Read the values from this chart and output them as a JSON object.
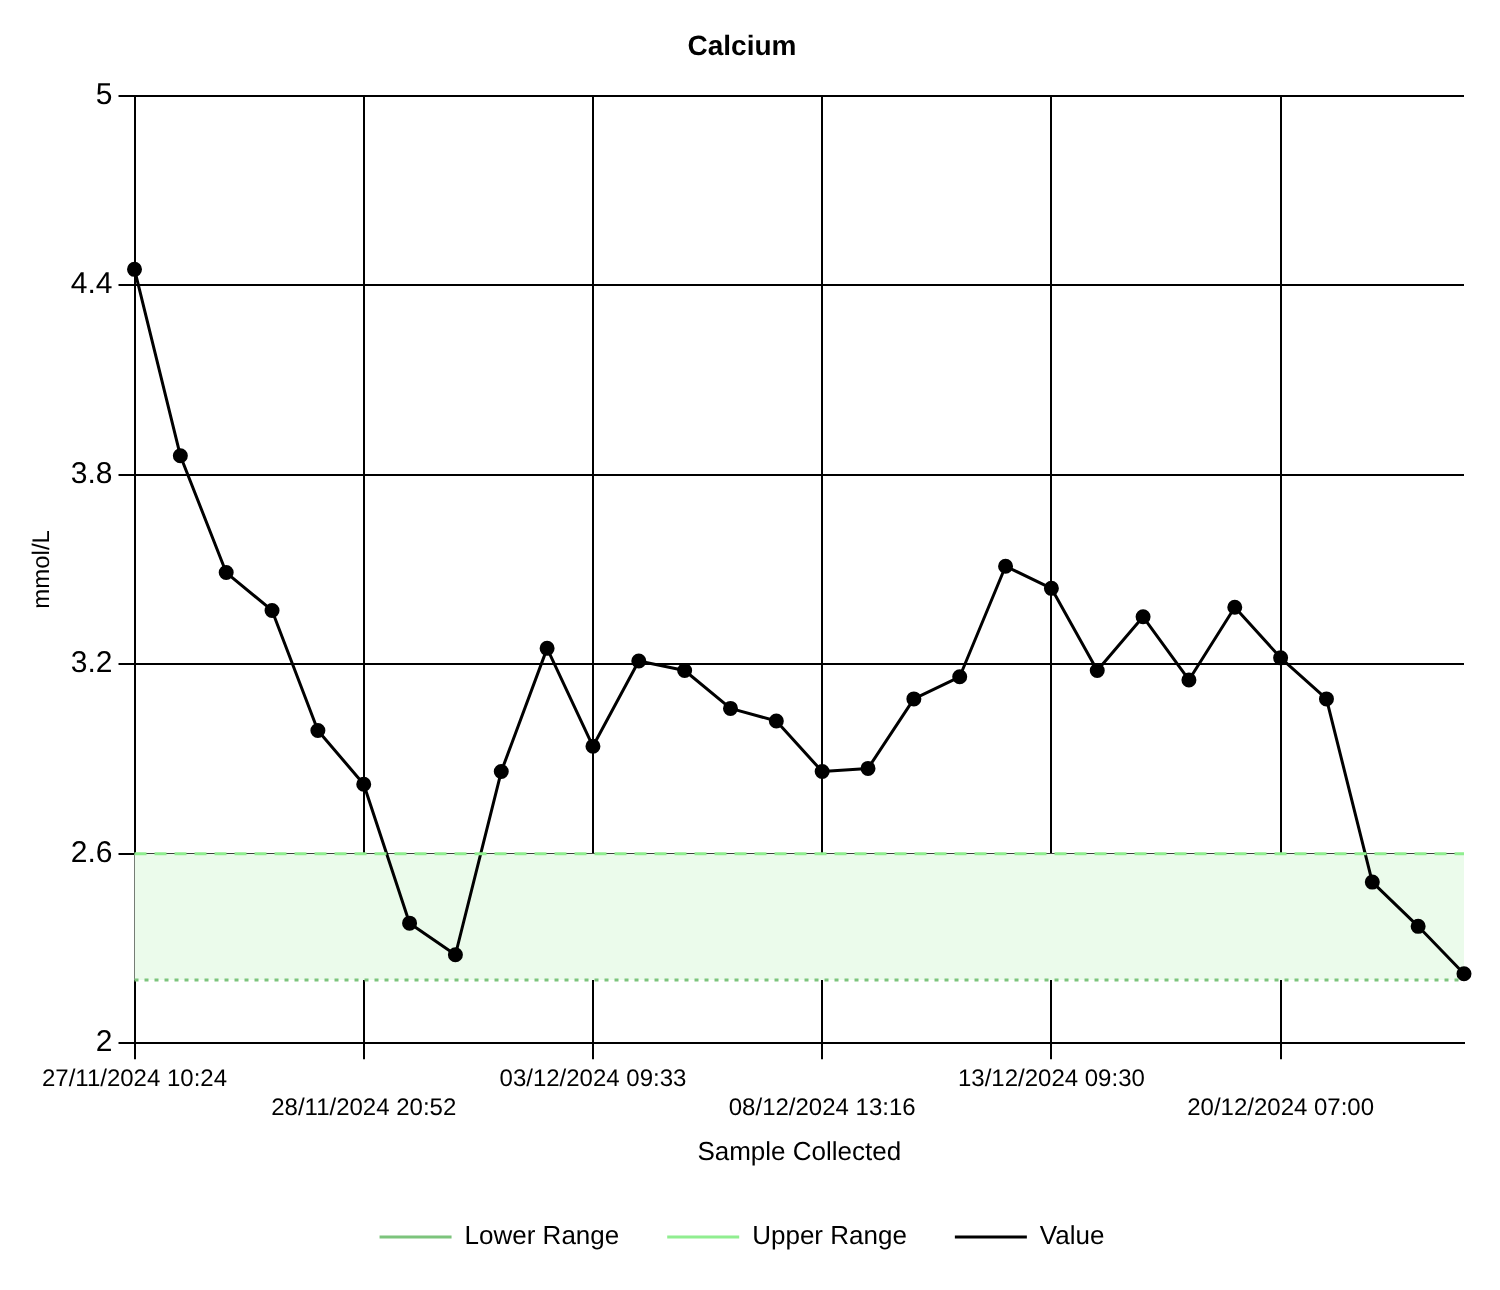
{
  "chart_data": {
    "type": "line",
    "title": "Calcium",
    "xlabel": "Sample Collected",
    "ylabel": "mmol/L",
    "categories": [
      "27/11/2024 10:24",
      null,
      null,
      null,
      null,
      "28/11/2024 20:52",
      null,
      null,
      null,
      null,
      "03/12/2024 09:33",
      null,
      null,
      null,
      null,
      "08/12/2024 13:16",
      null,
      null,
      null,
      null,
      "13/12/2024 09:30",
      null,
      null,
      null,
      null,
      "20/12/2024 07:00",
      null,
      null,
      null,
      null
    ],
    "series": [
      {
        "name": "Lower Range",
        "color": "#7cc47c",
        "line_style": "dotted",
        "marker": "none",
        "values": [
          2.2,
          2.2,
          2.2,
          2.2,
          2.2,
          2.2,
          2.2,
          2.2,
          2.2,
          2.2,
          2.2,
          2.2,
          2.2,
          2.2,
          2.2,
          2.2,
          2.2,
          2.2,
          2.2,
          2.2,
          2.2,
          2.2,
          2.2,
          2.2,
          2.2,
          2.2,
          2.2,
          2.2,
          2.2,
          2.2
        ]
      },
      {
        "name": "Upper Range",
        "color": "#90ee90",
        "line_style": "dashed",
        "marker": "none",
        "values": [
          2.6,
          2.6,
          2.6,
          2.6,
          2.6,
          2.6,
          2.6,
          2.6,
          2.6,
          2.6,
          2.6,
          2.6,
          2.6,
          2.6,
          2.6,
          2.6,
          2.6,
          2.6,
          2.6,
          2.6,
          2.6,
          2.6,
          2.6,
          2.6,
          2.6,
          2.6,
          2.6,
          2.6,
          2.6,
          2.6
        ]
      },
      {
        "name": "Value",
        "color": "#000000",
        "line_style": "solid",
        "marker": "circle",
        "values": [
          4.45,
          3.86,
          3.49,
          3.37,
          2.99,
          2.82,
          2.38,
          2.28,
          2.86,
          3.25,
          2.94,
          3.21,
          3.18,
          3.06,
          3.02,
          2.86,
          2.87,
          3.09,
          3.16,
          3.51,
          3.44,
          3.18,
          3.35,
          3.15,
          3.38,
          3.22,
          3.09,
          2.51,
          2.37,
          2.22
        ]
      }
    ],
    "bands": [
      {
        "axis": "y",
        "from": 2.2,
        "to": 2.6,
        "color": "#ebfbeb"
      }
    ],
    "ylim": [
      2,
      5
    ],
    "yticks": [
      2,
      2.6,
      3.2,
      3.8,
      4.4,
      5
    ],
    "grid": true,
    "legend": "bottom"
  }
}
